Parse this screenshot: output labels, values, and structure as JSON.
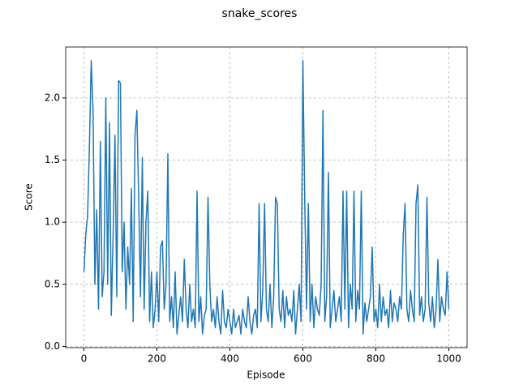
{
  "chart_data": {
    "type": "line",
    "title": "snake_scores",
    "x_label": "Episode",
    "y_label": "Score",
    "x": [
      0,
      5,
      10,
      15,
      20,
      25,
      30,
      35,
      40,
      45,
      50,
      55,
      60,
      65,
      70,
      75,
      80,
      85,
      90,
      95,
      100,
      105,
      110,
      115,
      120,
      125,
      130,
      135,
      140,
      145,
      150,
      155,
      160,
      165,
      170,
      175,
      180,
      185,
      190,
      195,
      200,
      205,
      210,
      215,
      220,
      225,
      230,
      235,
      240,
      245,
      250,
      255,
      260,
      265,
      270,
      275,
      280,
      285,
      290,
      295,
      300,
      305,
      310,
      315,
      320,
      325,
      330,
      335,
      340,
      345,
      350,
      355,
      360,
      365,
      370,
      375,
      380,
      385,
      390,
      395,
      400,
      405,
      410,
      415,
      420,
      425,
      430,
      435,
      440,
      445,
      450,
      455,
      460,
      465,
      470,
      475,
      480,
      485,
      490,
      495,
      500,
      505,
      510,
      515,
      520,
      525,
      530,
      535,
      540,
      545,
      550,
      555,
      560,
      565,
      570,
      575,
      580,
      585,
      590,
      595,
      600,
      605,
      610,
      615,
      620,
      625,
      630,
      635,
      640,
      645,
      650,
      655,
      660,
      665,
      670,
      675,
      680,
      685,
      690,
      695,
      700,
      705,
      710,
      715,
      720,
      725,
      730,
      735,
      740,
      745,
      750,
      755,
      760,
      765,
      770,
      775,
      780,
      785,
      790,
      795,
      800,
      805,
      810,
      815,
      820,
      825,
      830,
      835,
      840,
      845,
      850,
      855,
      860,
      865,
      870,
      875,
      880,
      885,
      890,
      895,
      900,
      905,
      910,
      915,
      920,
      925,
      930,
      935,
      940,
      945,
      950,
      955,
      960,
      965,
      970,
      975,
      980,
      985,
      990,
      995,
      1000
    ],
    "series": [
      {
        "name": "snake_scores",
        "color": "#1f77b4",
        "values": [
          0.6,
          0.9,
          1.05,
          1.6,
          2.3,
          1.9,
          0.5,
          1.1,
          0.3,
          1.65,
          0.4,
          0.6,
          2.0,
          0.5,
          1.8,
          0.25,
          0.9,
          1.7,
          0.4,
          2.14,
          2.12,
          0.6,
          1.0,
          0.3,
          0.8,
          0.5,
          1.27,
          0.2,
          1.7,
          1.9,
          1.2,
          0.4,
          1.52,
          0.3,
          1.0,
          1.25,
          0.2,
          0.6,
          0.15,
          0.3,
          0.6,
          0.2,
          0.8,
          0.85,
          0.3,
          0.5,
          1.55,
          0.2,
          0.4,
          0.15,
          0.6,
          0.1,
          0.25,
          0.4,
          0.2,
          0.7,
          0.3,
          0.15,
          0.5,
          0.2,
          0.3,
          0.15,
          1.25,
          0.2,
          0.4,
          0.1,
          0.25,
          0.3,
          1.2,
          0.5,
          0.2,
          0.3,
          0.15,
          0.4,
          0.2,
          0.1,
          0.45,
          0.2,
          0.15,
          0.3,
          0.2,
          0.1,
          0.3,
          0.15,
          0.2,
          0.25,
          0.1,
          0.3,
          0.2,
          0.15,
          0.4,
          0.2,
          0.1,
          0.25,
          0.3,
          0.15,
          1.15,
          0.2,
          0.45,
          1.15,
          0.3,
          0.2,
          0.5,
          0.15,
          0.4,
          1.2,
          1.15,
          0.3,
          0.2,
          0.45,
          0.15,
          0.4,
          0.25,
          0.3,
          0.2,
          0.45,
          0.1,
          0.3,
          0.5,
          0.2,
          2.3,
          1.2,
          0.3,
          1.15,
          0.2,
          0.5,
          0.15,
          0.4,
          0.3,
          0.25,
          0.5,
          1.9,
          0.2,
          0.4,
          1.4,
          0.15,
          0.3,
          0.45,
          0.2,
          0.3,
          0.4,
          0.2,
          1.25,
          0.3,
          1.25,
          0.15,
          0.5,
          0.3,
          1.25,
          0.2,
          0.45,
          0.3,
          1.25,
          0.1,
          0.35,
          0.2,
          0.3,
          0.4,
          0.8,
          0.2,
          0.3,
          0.15,
          0.5,
          0.2,
          0.4,
          0.25,
          0.3,
          0.15,
          0.45,
          0.2,
          0.35,
          0.3,
          0.2,
          0.4,
          0.3,
          0.9,
          1.15,
          0.3,
          0.2,
          0.45,
          0.3,
          0.2,
          1.15,
          1.3,
          0.25,
          0.4,
          0.2,
          0.3,
          1.2,
          0.35,
          0.2,
          0.4,
          0.15,
          0.3,
          0.7,
          0.2,
          0.4,
          0.3,
          0.25,
          0.6,
          0.3
        ]
      }
    ],
    "xlim": [
      -50,
      1050
    ],
    "xticks": [
      0,
      200,
      400,
      600,
      800,
      1000
    ],
    "ylim": [
      -0.01,
      2.41
    ],
    "yticks": [
      {
        "value": 0,
        "label": "0.0"
      },
      0.5,
      {
        "value": 1,
        "label": "1.0"
      },
      1.5,
      {
        "value": 2,
        "label": "2.0"
      }
    ],
    "grid": true
  }
}
